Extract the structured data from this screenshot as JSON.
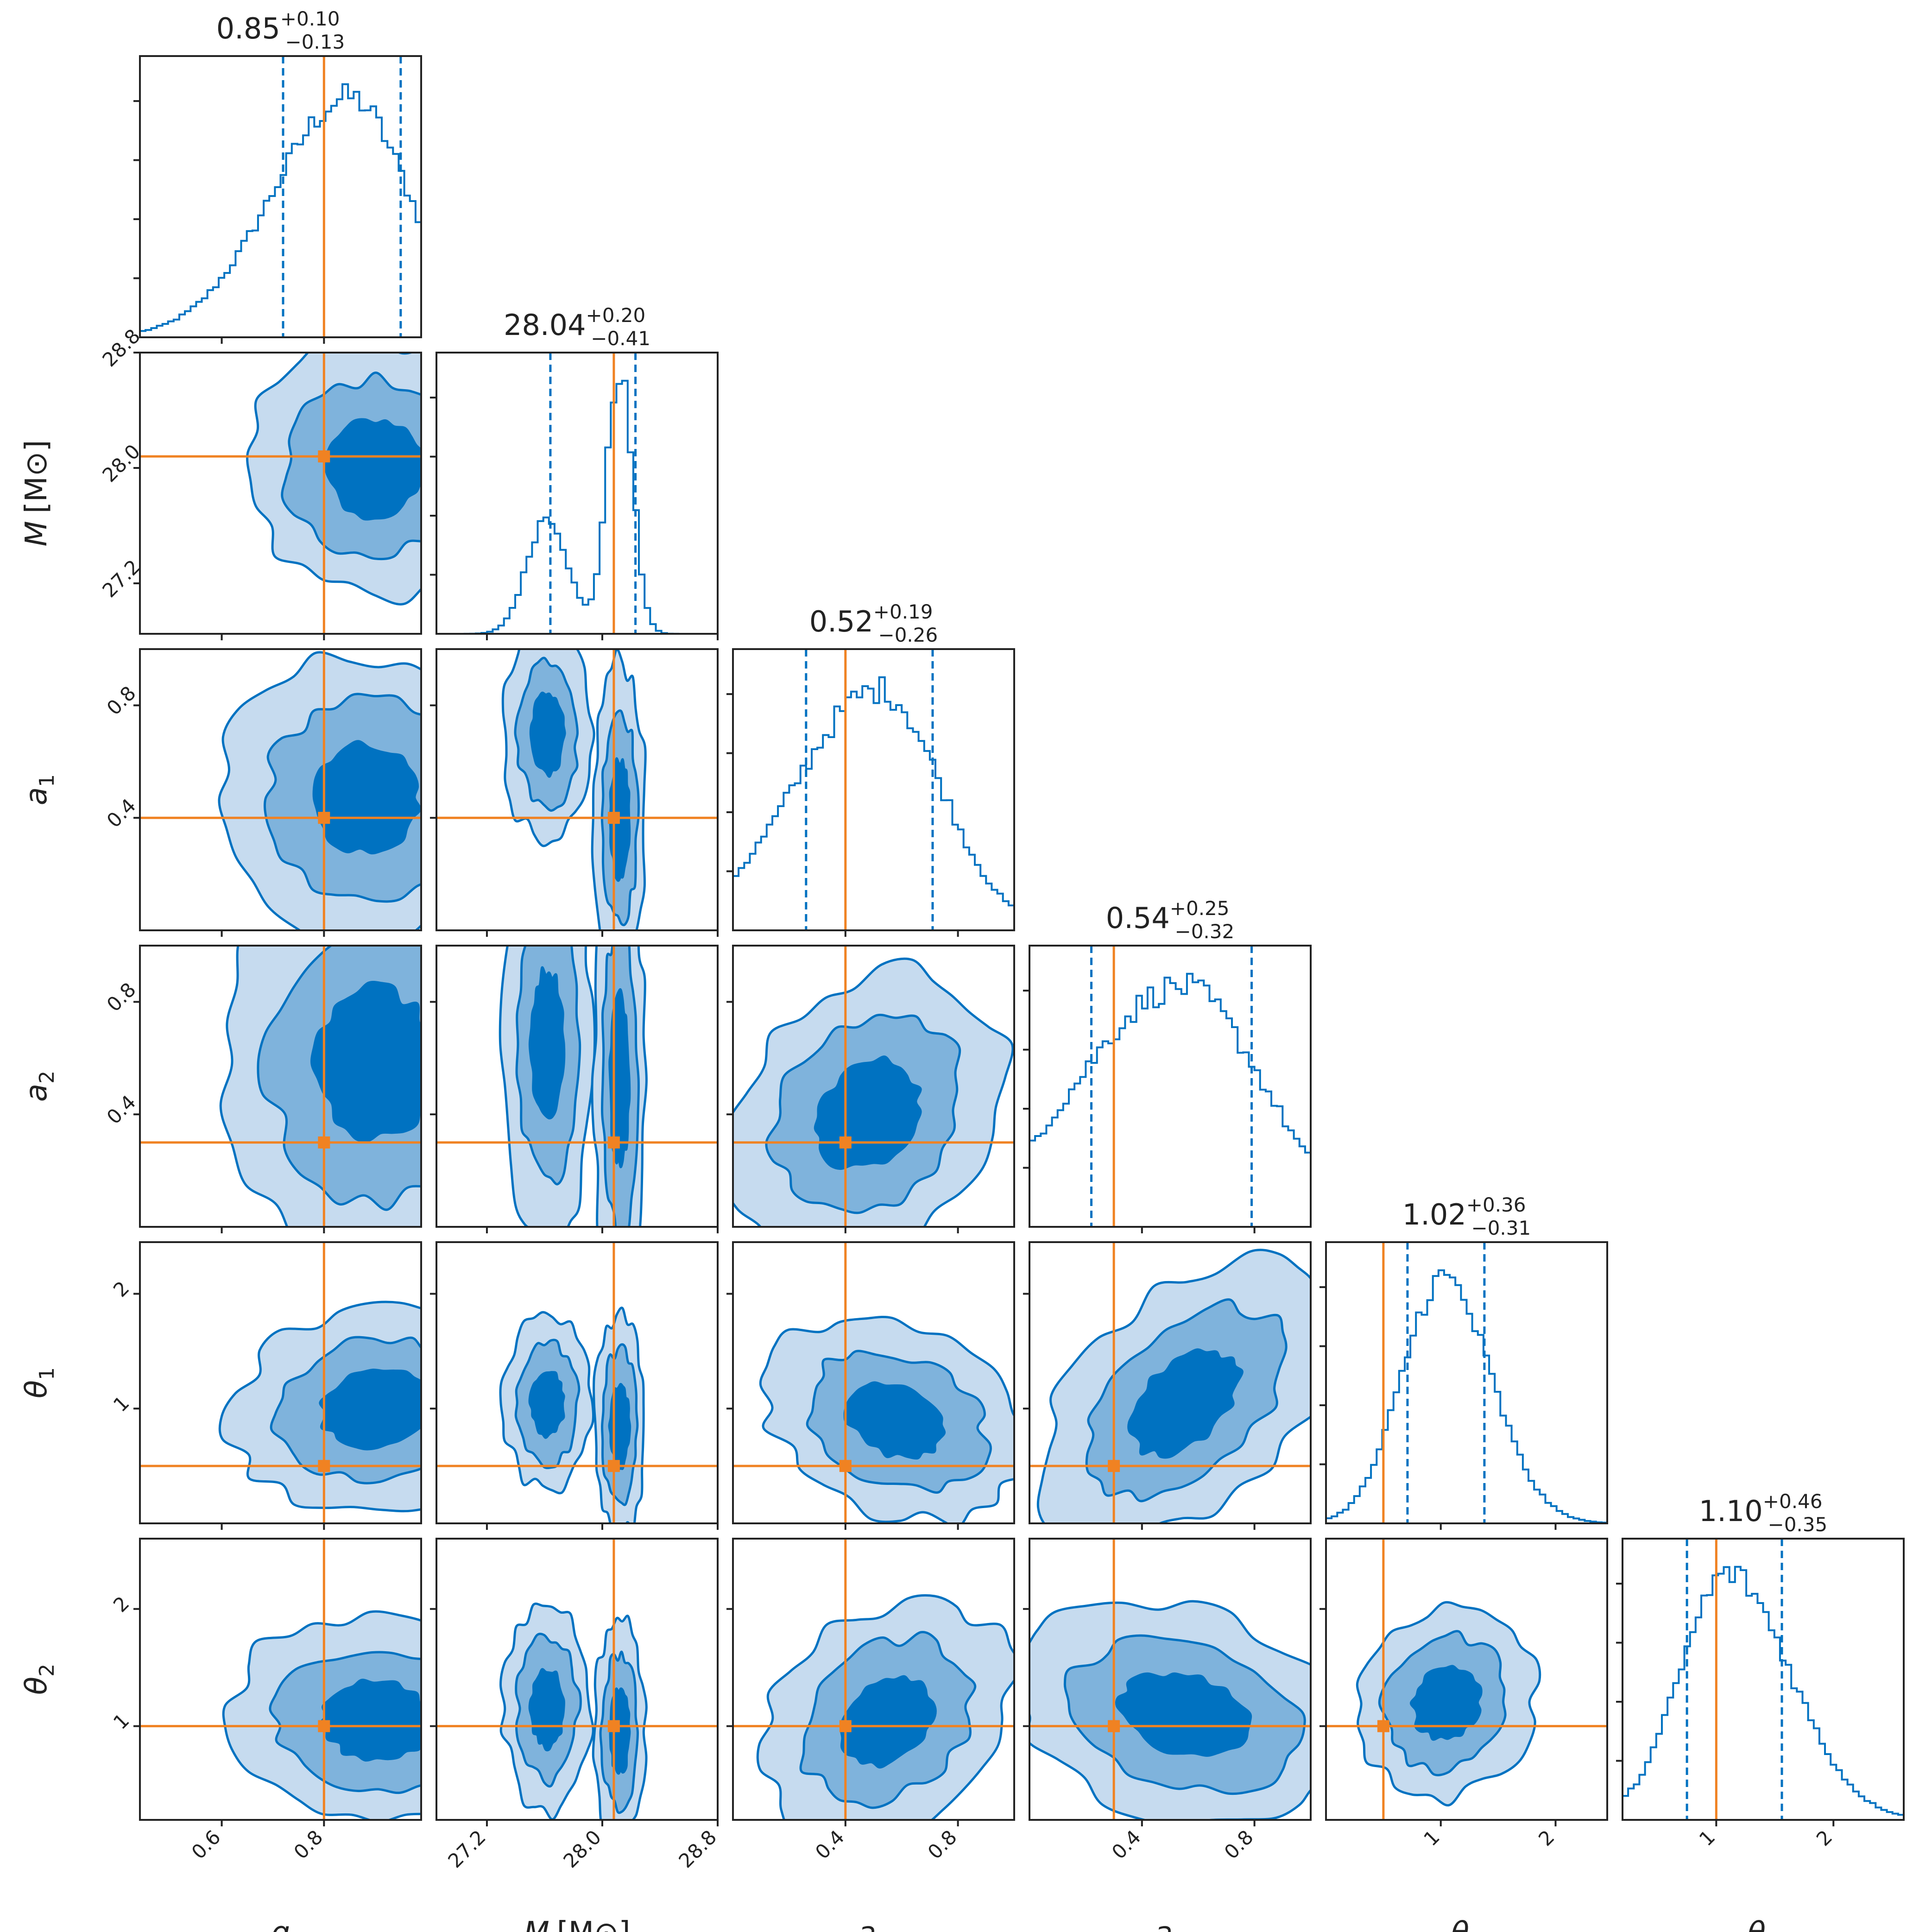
{
  "chart_data": {
    "type": "corner",
    "parameters": [
      {
        "key": "q",
        "label": "q",
        "symbol": "q",
        "subscript": "",
        "unit": "",
        "range": [
          0.44,
          0.99
        ],
        "ticks": [
          0.6,
          0.8
        ],
        "tick_labels": [
          "0.6",
          "0.8"
        ],
        "median": 0.85,
        "plus": 0.1,
        "minus": 0.13,
        "title_value": "0.85",
        "title_plus": "+0.10",
        "title_minus": "−0.13",
        "truth": 0.8,
        "quantiles": [
          0.72,
          0.95
        ]
      },
      {
        "key": "M",
        "label": "M [M⊙]",
        "symbol": "M",
        "subscript": "",
        "unit": "[M⊙]",
        "range": [
          26.85,
          28.8
        ],
        "ticks": [
          27.2,
          28.0,
          28.8
        ],
        "tick_labels": [
          "27.2",
          "28.0",
          "28.8"
        ],
        "median": 28.04,
        "plus": 0.2,
        "minus": 0.41,
        "title_value": "28.04",
        "title_plus": "+0.20",
        "title_minus": "−0.41",
        "truth": 28.08,
        "quantiles": [
          27.64,
          28.23
        ]
      },
      {
        "key": "a1",
        "label": "a1",
        "symbol": "a",
        "subscript": "1",
        "unit": "",
        "range": [
          0.0,
          1.0
        ],
        "ticks": [
          0.4,
          0.8
        ],
        "tick_labels": [
          "0.4",
          "0.8"
        ],
        "median": 0.52,
        "plus": 0.19,
        "minus": 0.26,
        "title_value": "0.52",
        "title_plus": "+0.19",
        "title_minus": "−0.26",
        "truth": 0.4,
        "quantiles": [
          0.26,
          0.71
        ]
      },
      {
        "key": "a2",
        "label": "a2",
        "symbol": "a",
        "subscript": "2",
        "unit": "",
        "range": [
          0.0,
          1.0
        ],
        "ticks": [
          0.4,
          0.8
        ],
        "tick_labels": [
          "0.4",
          "0.8"
        ],
        "median": 0.54,
        "plus": 0.25,
        "minus": 0.32,
        "title_value": "0.54",
        "title_plus": "+0.25",
        "title_minus": "−0.32",
        "truth": 0.3,
        "quantiles": [
          0.22,
          0.79
        ]
      },
      {
        "key": "theta1",
        "label": "θ1",
        "symbol": "θ",
        "subscript": "1",
        "unit": "",
        "range": [
          0.0,
          2.45
        ],
        "ticks": [
          1,
          2
        ],
        "tick_labels": [
          "1",
          "2"
        ],
        "median": 1.02,
        "plus": 0.36,
        "minus": 0.31,
        "title_value": "1.02",
        "title_plus": "+0.36",
        "title_minus": "−0.31",
        "truth": 0.5,
        "quantiles": [
          0.71,
          1.38
        ]
      },
      {
        "key": "theta2",
        "label": "θ2",
        "symbol": "θ",
        "subscript": "2",
        "unit": "",
        "range": [
          0.2,
          2.6
        ],
        "ticks": [
          1,
          2
        ],
        "tick_labels": [
          "1",
          "2"
        ],
        "median": 1.1,
        "plus": 0.46,
        "minus": 0.35,
        "title_value": "1.10",
        "title_plus": "+0.46",
        "title_minus": "−0.35",
        "truth": 1.0,
        "quantiles": [
          0.75,
          1.56
        ]
      }
    ],
    "legend": "none",
    "grid": false,
    "colors": {
      "posterior": "#0072c1",
      "level_1": "#c6dbef",
      "level_2": "#7fb3dc",
      "level_3": "#0072c1",
      "truth": "#f08222",
      "frame": "#222222"
    }
  }
}
